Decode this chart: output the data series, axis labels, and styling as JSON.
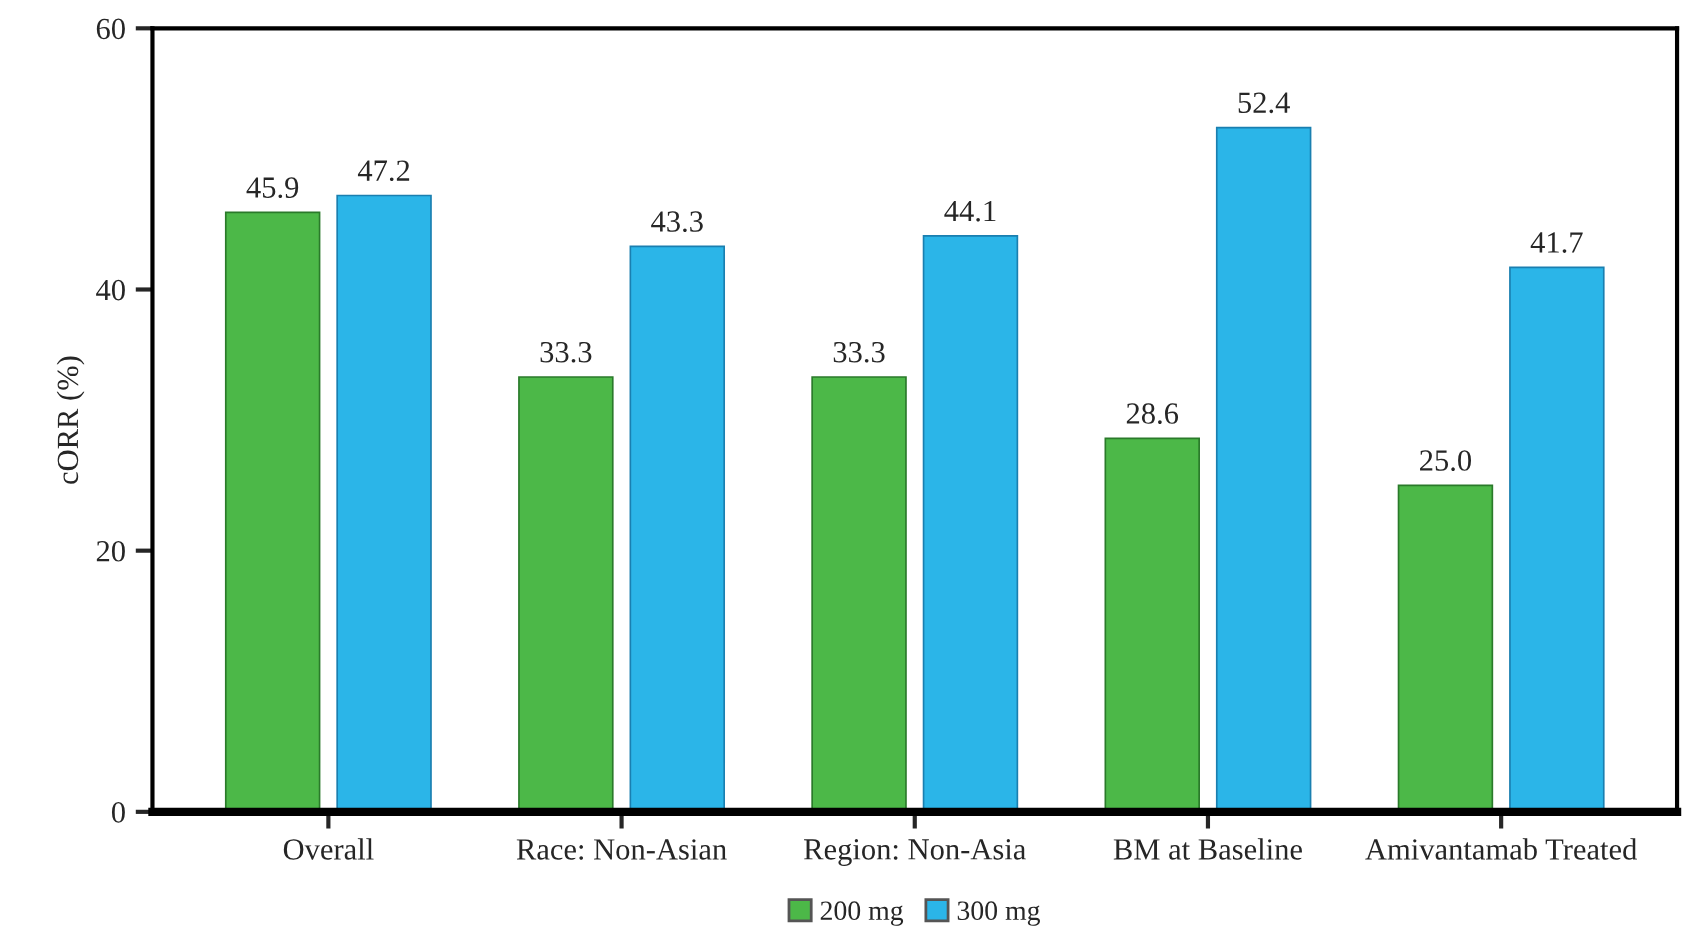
{
  "chart_data": {
    "type": "bar",
    "ylabel": "cORR (%)",
    "categories": [
      "Overall",
      "Race: Non-Asian",
      "Region: Non-Asia",
      "BM at Baseline",
      "Amivantamab Treated"
    ],
    "series": [
      {
        "name": "200 mg",
        "color": "#4cb848",
        "values": [
          45.9,
          33.3,
          33.3,
          28.6,
          25.0
        ],
        "value_labels": [
          "45.9",
          "33.3",
          "33.3",
          "28.6",
          "25.0"
        ]
      },
      {
        "name": "300 mg",
        "color": "#2bb5e8",
        "values": [
          47.2,
          43.3,
          44.1,
          52.4,
          41.7
        ],
        "value_labels": [
          "47.2",
          "43.3",
          "44.1",
          "52.4",
          "41.7"
        ]
      }
    ],
    "ylim": [
      0,
      60
    ],
    "yticks": [
      0,
      20,
      40,
      60
    ],
    "grid": false,
    "legend": "bottom"
  }
}
